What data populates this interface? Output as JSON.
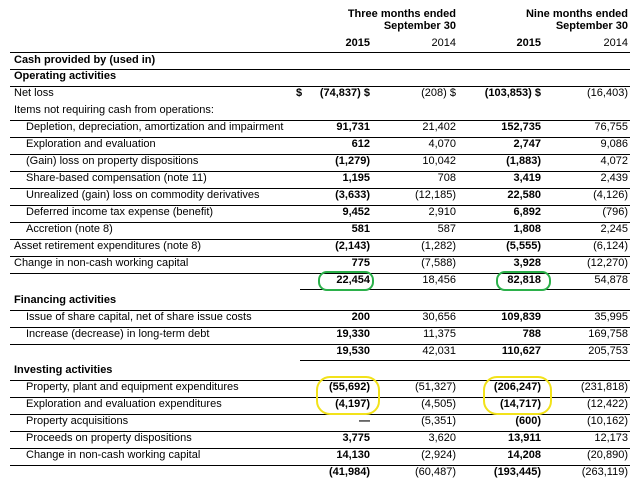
{
  "header": {
    "three_months": [
      "Three months ended",
      "September 30"
    ],
    "nine_months": [
      "Nine months ended",
      "September 30"
    ],
    "years": [
      "2015",
      "2014",
      "2015",
      "2014"
    ]
  },
  "rows": [
    {
      "label": "Cash provided by (used in)",
      "style": "section"
    },
    {
      "label": "Operating activities",
      "style": "section"
    },
    {
      "label": "Net loss",
      "style": "plain",
      "dollar": "$",
      "values": [
        "(74,837) $",
        "(208) $",
        "(103,853) $",
        "(16,403)"
      ]
    },
    {
      "label": "Items not requiring cash from operations:",
      "style": "plain"
    },
    {
      "label": "Depletion, depreciation, amortization and impairment",
      "style": "indent",
      "values": [
        "91,731",
        "21,402",
        "152,735",
        "76,755"
      ]
    },
    {
      "label": "Exploration and evaluation",
      "style": "indent",
      "values": [
        "612",
        "4,070",
        "2,747",
        "9,086"
      ]
    },
    {
      "label": "(Gain) loss on property dispositions",
      "style": "indent",
      "values": [
        "(1,279)",
        "10,042",
        "(1,883)",
        "4,072"
      ]
    },
    {
      "label": "Share-based compensation (note 11)",
      "style": "indent",
      "values": [
        "1,195",
        "708",
        "3,419",
        "2,439"
      ]
    },
    {
      "label": "Unrealized (gain) loss on commodity derivatives",
      "style": "indent",
      "values": [
        "(3,633)",
        "(12,185)",
        "22,580",
        "(4,126)"
      ]
    },
    {
      "label": "Deferred income tax expense (benefit)",
      "style": "indent",
      "values": [
        "9,452",
        "2,910",
        "6,892",
        "(796)"
      ]
    },
    {
      "label": "Accretion (note 8)",
      "style": "indent",
      "values": [
        "581",
        "587",
        "1,808",
        "2,245"
      ]
    },
    {
      "label": "Asset retirement expenditures (note 8)",
      "style": "plain",
      "values": [
        "(2,143)",
        "(1,282)",
        "(5,555)",
        "(6,124)"
      ]
    },
    {
      "label": "Change in non-cash working capital",
      "style": "plain",
      "values": [
        "775",
        "(7,588)",
        "3,928",
        "(12,270)"
      ]
    },
    {
      "label": "",
      "style": "total",
      "values": [
        "22,454",
        "18,456",
        "82,818",
        "54,878"
      ]
    },
    {
      "label": "Financing activities",
      "style": "section"
    },
    {
      "label": "Issue of share capital, net of share issue costs",
      "style": "indent",
      "values": [
        "200",
        "30,656",
        "109,839",
        "35,995"
      ]
    },
    {
      "label": "Increase (decrease) in long-term debt",
      "style": "indent",
      "values": [
        "19,330",
        "11,375",
        "788",
        "169,758"
      ]
    },
    {
      "label": "",
      "style": "total",
      "values": [
        "19,530",
        "42,031",
        "110,627",
        "205,753"
      ]
    },
    {
      "label": "Investing activities",
      "style": "section"
    },
    {
      "label": "Property, plant and equipment expenditures",
      "style": "indent",
      "values": [
        "(55,692)",
        "(51,327)",
        "(206,247)",
        "(231,818)"
      ]
    },
    {
      "label": "Exploration and evaluation expenditures",
      "style": "indent",
      "values": [
        "(4,197)",
        "(4,505)",
        "(14,717)",
        "(12,422)"
      ]
    },
    {
      "label": "Property acquisitions",
      "style": "indent",
      "values": [
        "—",
        "(5,351)",
        "(600)",
        "(10,162)"
      ]
    },
    {
      "label": "Proceeds on property dispositions",
      "style": "indent",
      "values": [
        "3,775",
        "3,620",
        "13,911",
        "12,173"
      ]
    },
    {
      "label": "Change in non-cash working capital",
      "style": "indent",
      "values": [
        "14,130",
        "(2,924)",
        "14,208",
        "(20,890)"
      ]
    },
    {
      "label": "",
      "style": "total",
      "values": [
        "(41,984)",
        "(60,487)",
        "(193,445)",
        "(263,119)"
      ]
    }
  ],
  "highlights": {
    "green": "#2bb04a",
    "yellow": "#f2e21a"
  }
}
